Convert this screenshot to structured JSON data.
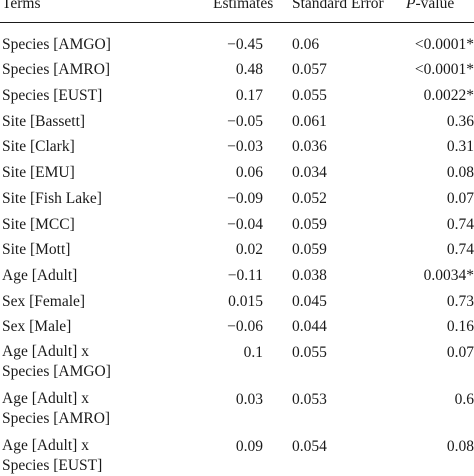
{
  "headers": {
    "terms": "Terms",
    "estimates": "Estimates",
    "standard_error": "Standard Error",
    "p_value_p": "P",
    "p_value_rest": "-value"
  },
  "rows": [
    {
      "term": "Species [AMGO]",
      "estimate": "−0.45",
      "se": "0.06",
      "p": "<0.0001*"
    },
    {
      "term": "Species [AMRO]",
      "estimate": "0.48",
      "se": "0.057",
      "p": "<0.0001*"
    },
    {
      "term": "Species [EUST]",
      "estimate": "0.17",
      "se": "0.055",
      "p": "0.0022*"
    },
    {
      "term": "Site [Bassett]",
      "estimate": "−0.05",
      "se": "0.061",
      "p": "0.36"
    },
    {
      "term": "Site [Clark]",
      "estimate": "−0.03",
      "se": "0.036",
      "p": "0.31"
    },
    {
      "term": "Site [EMU]",
      "estimate": "0.06",
      "se": "0.034",
      "p": "0.08"
    },
    {
      "term": "Site [Fish Lake]",
      "estimate": "−0.09",
      "se": "0.052",
      "p": "0.07"
    },
    {
      "term": "Site [MCC]",
      "estimate": "−0.04",
      "se": "0.059",
      "p": "0.74"
    },
    {
      "term": "Site [Mott]",
      "estimate": "0.02",
      "se": "0.059",
      "p": "0.74"
    },
    {
      "term": "Age [Adult]",
      "estimate": "−0.11",
      "se": "0.038",
      "p": "0.0034*"
    },
    {
      "term": "Sex [Female]",
      "estimate": "0.015",
      "se": "0.045",
      "p": "0.73"
    },
    {
      "term": "Sex [Male]",
      "estimate": "−0.06",
      "se": "0.044",
      "p": "0.16"
    },
    {
      "term_line1": "Age [Adult] x",
      "term_line2": "Species [AMGO]",
      "estimate": "0.1",
      "se": "0.055",
      "p": "0.07"
    },
    {
      "term_line1": "Age [Adult] x",
      "term_line2": "Species [AMRO]",
      "estimate": "0.03",
      "se": "0.053",
      "p": "0.6"
    },
    {
      "term_line1": "Age [Adult] x",
      "term_line2": "Species [EUST]",
      "estimate": "0.09",
      "se": "0.054",
      "p": "0.08"
    }
  ]
}
